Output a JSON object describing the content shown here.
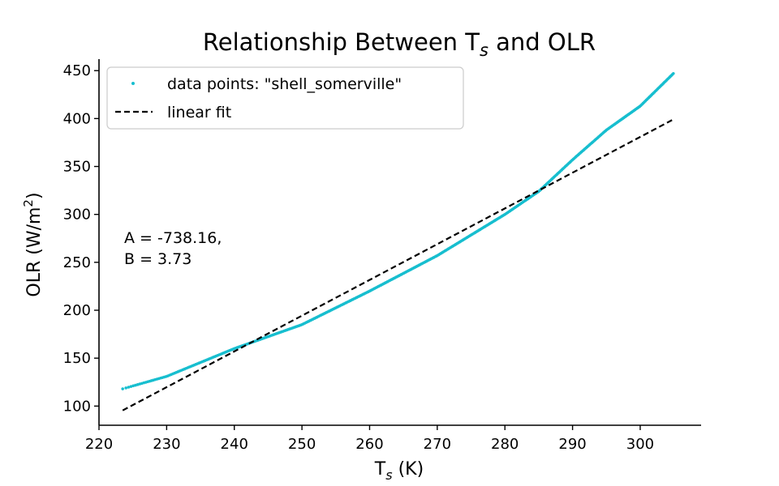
{
  "chart_data": {
    "type": "scatter",
    "title": "Relationship Between T",
    "title_sub": "s",
    "title_suffix": " and OLR",
    "xlabel": "T",
    "xlabel_sub": "s",
    "xlabel_suffix": " (K)",
    "ylabel": "OLR (W/m",
    "ylabel_sup": "2",
    "ylabel_suffix": ")",
    "xlim": [
      220,
      309
    ],
    "ylim": [
      80,
      462
    ],
    "xticks": [
      220,
      230,
      240,
      250,
      260,
      270,
      280,
      290,
      300
    ],
    "yticks": [
      100,
      150,
      200,
      250,
      300,
      350,
      400,
      450
    ],
    "grid": false,
    "legend_position": "top-left",
    "series": [
      {
        "name": "data points: \"shell_somerville\"",
        "kind": "scatter",
        "color": "#17becf",
        "x_range": [
          223.5,
          304.9
        ],
        "curve_points": [
          [
            223.5,
            118
          ],
          [
            230,
            131
          ],
          [
            240,
            160
          ],
          [
            250,
            185
          ],
          [
            260,
            220
          ],
          [
            270,
            257
          ],
          [
            280,
            300
          ],
          [
            285,
            324
          ],
          [
            290,
            357
          ],
          [
            295,
            388
          ],
          [
            300,
            413
          ],
          [
            304.9,
            447
          ]
        ]
      },
      {
        "name": "linear fit",
        "kind": "line",
        "style": "dashed",
        "color": "#000000",
        "intercept": -738.16,
        "slope": 3.73,
        "x_range": [
          223.5,
          304.9
        ]
      }
    ],
    "annotations": [
      "A = -738.16,",
      "B = 3.73"
    ]
  }
}
